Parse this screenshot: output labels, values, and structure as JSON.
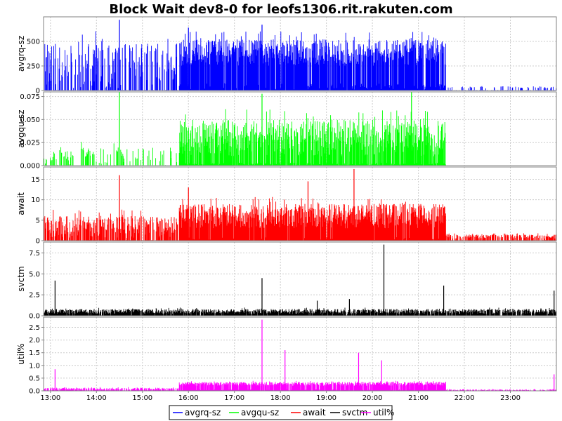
{
  "chart_data": {
    "type": "line",
    "title": "Block Wait dev8-0 for leofs1306.rit.rakuten.com",
    "x_tick_labels": [
      "13:00",
      "14:00",
      "15:00",
      "16:00",
      "17:00",
      "18:00",
      "19:00",
      "20:00",
      "21:00",
      "22:00",
      "23:00"
    ],
    "x_range_hours": [
      12.85,
      24.0
    ],
    "grid": true,
    "legend_position": "bottom",
    "panels": [
      {
        "name": "avgrq-sz",
        "ylabel": "avgrq-sz",
        "color": "#0000ff",
        "ylim": [
          0,
          750
        ],
        "ticks": [
          "0",
          "250",
          "500"
        ],
        "tick_values": [
          0,
          250,
          500
        ],
        "segments": [
          {
            "x_start": 12.85,
            "x_end": 15.8,
            "base": 20,
            "high": 480,
            "prob": 0.5
          },
          {
            "x_start": 15.8,
            "x_end": 21.6,
            "base": 250,
            "high": 520,
            "prob": 0.9
          },
          {
            "x_start": 21.6,
            "x_end": 24.0,
            "base": 20,
            "high": 40,
            "prob": 0.2
          }
        ],
        "spikes": [
          {
            "x": 14.5,
            "y": 720
          },
          {
            "x": 17.6,
            "y": 670
          },
          {
            "x": 16.0,
            "y": 640
          }
        ]
      },
      {
        "name": "avgqu-sz",
        "ylabel": "avgqu-sz",
        "color": "#00ff00",
        "ylim": [
          0,
          0.08
        ],
        "ticks": [
          "0.000",
          "0.025",
          "0.050",
          "0.075"
        ],
        "tick_values": [
          0,
          0.025,
          0.05,
          0.075
        ],
        "segments": [
          {
            "x_start": 12.85,
            "x_end": 15.8,
            "base": 0,
            "high": 0.02,
            "prob": 0.3
          },
          {
            "x_start": 15.8,
            "x_end": 21.6,
            "base": 0.01,
            "high": 0.05,
            "prob": 0.85
          },
          {
            "x_start": 21.6,
            "x_end": 24.0,
            "base": 0,
            "high": 0.001,
            "prob": 0.0
          }
        ],
        "spikes": [
          {
            "x": 14.5,
            "y": 0.08
          },
          {
            "x": 17.6,
            "y": 0.078
          },
          {
            "x": 20.85,
            "y": 0.08
          }
        ]
      },
      {
        "name": "await",
        "ylabel": "await",
        "color": "#ff0000",
        "ylim": [
          0,
          18
        ],
        "ticks": [
          "0",
          "5",
          "10",
          "15"
        ],
        "tick_values": [
          0,
          5,
          10,
          15
        ],
        "segments": [
          {
            "x_start": 12.85,
            "x_end": 15.8,
            "base": 0.5,
            "high": 6,
            "prob": 0.7
          },
          {
            "x_start": 15.8,
            "x_end": 21.6,
            "base": 3,
            "high": 9,
            "prob": 0.95
          },
          {
            "x_start": 21.6,
            "x_end": 24.0,
            "base": 0.5,
            "high": 1.5,
            "prob": 0.6
          }
        ],
        "spikes": [
          {
            "x": 14.5,
            "y": 16
          },
          {
            "x": 19.6,
            "y": 17.5
          },
          {
            "x": 18.6,
            "y": 14.5
          },
          {
            "x": 16.0,
            "y": 13
          }
        ]
      },
      {
        "name": "svctm",
        "ylabel": "svctm",
        "color": "#000000",
        "ylim": [
          0,
          8.8
        ],
        "ticks": [
          "0.0",
          "2.5",
          "5.0",
          "7.5"
        ],
        "tick_values": [
          0,
          2.5,
          5,
          7.5
        ],
        "segments": [
          {
            "x_start": 12.85,
            "x_end": 24.0,
            "base": 0.2,
            "high": 0.8,
            "prob": 0.9
          }
        ],
        "spikes": [
          {
            "x": 13.1,
            "y": 4.2
          },
          {
            "x": 17.6,
            "y": 4.5
          },
          {
            "x": 20.25,
            "y": 8.5
          },
          {
            "x": 21.55,
            "y": 3.6
          },
          {
            "x": 23.95,
            "y": 3.0
          },
          {
            "x": 19.5,
            "y": 2.0
          },
          {
            "x": 18.8,
            "y": 1.8
          }
        ]
      },
      {
        "name": "util%",
        "ylabel": "util%",
        "color": "#ff00ff",
        "ylim": [
          0,
          2.9
        ],
        "ticks": [
          "0.0",
          "0.5",
          "1.0",
          "1.5",
          "2.0",
          "2.5"
        ],
        "tick_values": [
          0,
          0.5,
          1,
          1.5,
          2,
          2.5
        ],
        "segments": [
          {
            "x_start": 12.85,
            "x_end": 15.8,
            "base": 0.03,
            "high": 0.12,
            "prob": 0.7
          },
          {
            "x_start": 15.8,
            "x_end": 21.6,
            "base": 0.2,
            "high": 0.35,
            "prob": 0.9
          },
          {
            "x_start": 21.6,
            "x_end": 24.0,
            "base": 0.02,
            "high": 0.06,
            "prob": 0.5
          }
        ],
        "spikes": [
          {
            "x": 13.1,
            "y": 0.85
          },
          {
            "x": 17.6,
            "y": 2.8
          },
          {
            "x": 18.1,
            "y": 1.6
          },
          {
            "x": 19.7,
            "y": 1.5
          },
          {
            "x": 20.2,
            "y": 1.2
          },
          {
            "x": 23.95,
            "y": 0.65
          }
        ]
      }
    ],
    "legend": [
      {
        "label": "avgrq-sz",
        "color": "#0000ff"
      },
      {
        "label": "avgqu-sz",
        "color": "#00ff00"
      },
      {
        "label": "await",
        "color": "#ff0000"
      },
      {
        "label": "svctm",
        "color": "#000000"
      },
      {
        "label": "util%",
        "color": "#ff00ff"
      }
    ]
  }
}
